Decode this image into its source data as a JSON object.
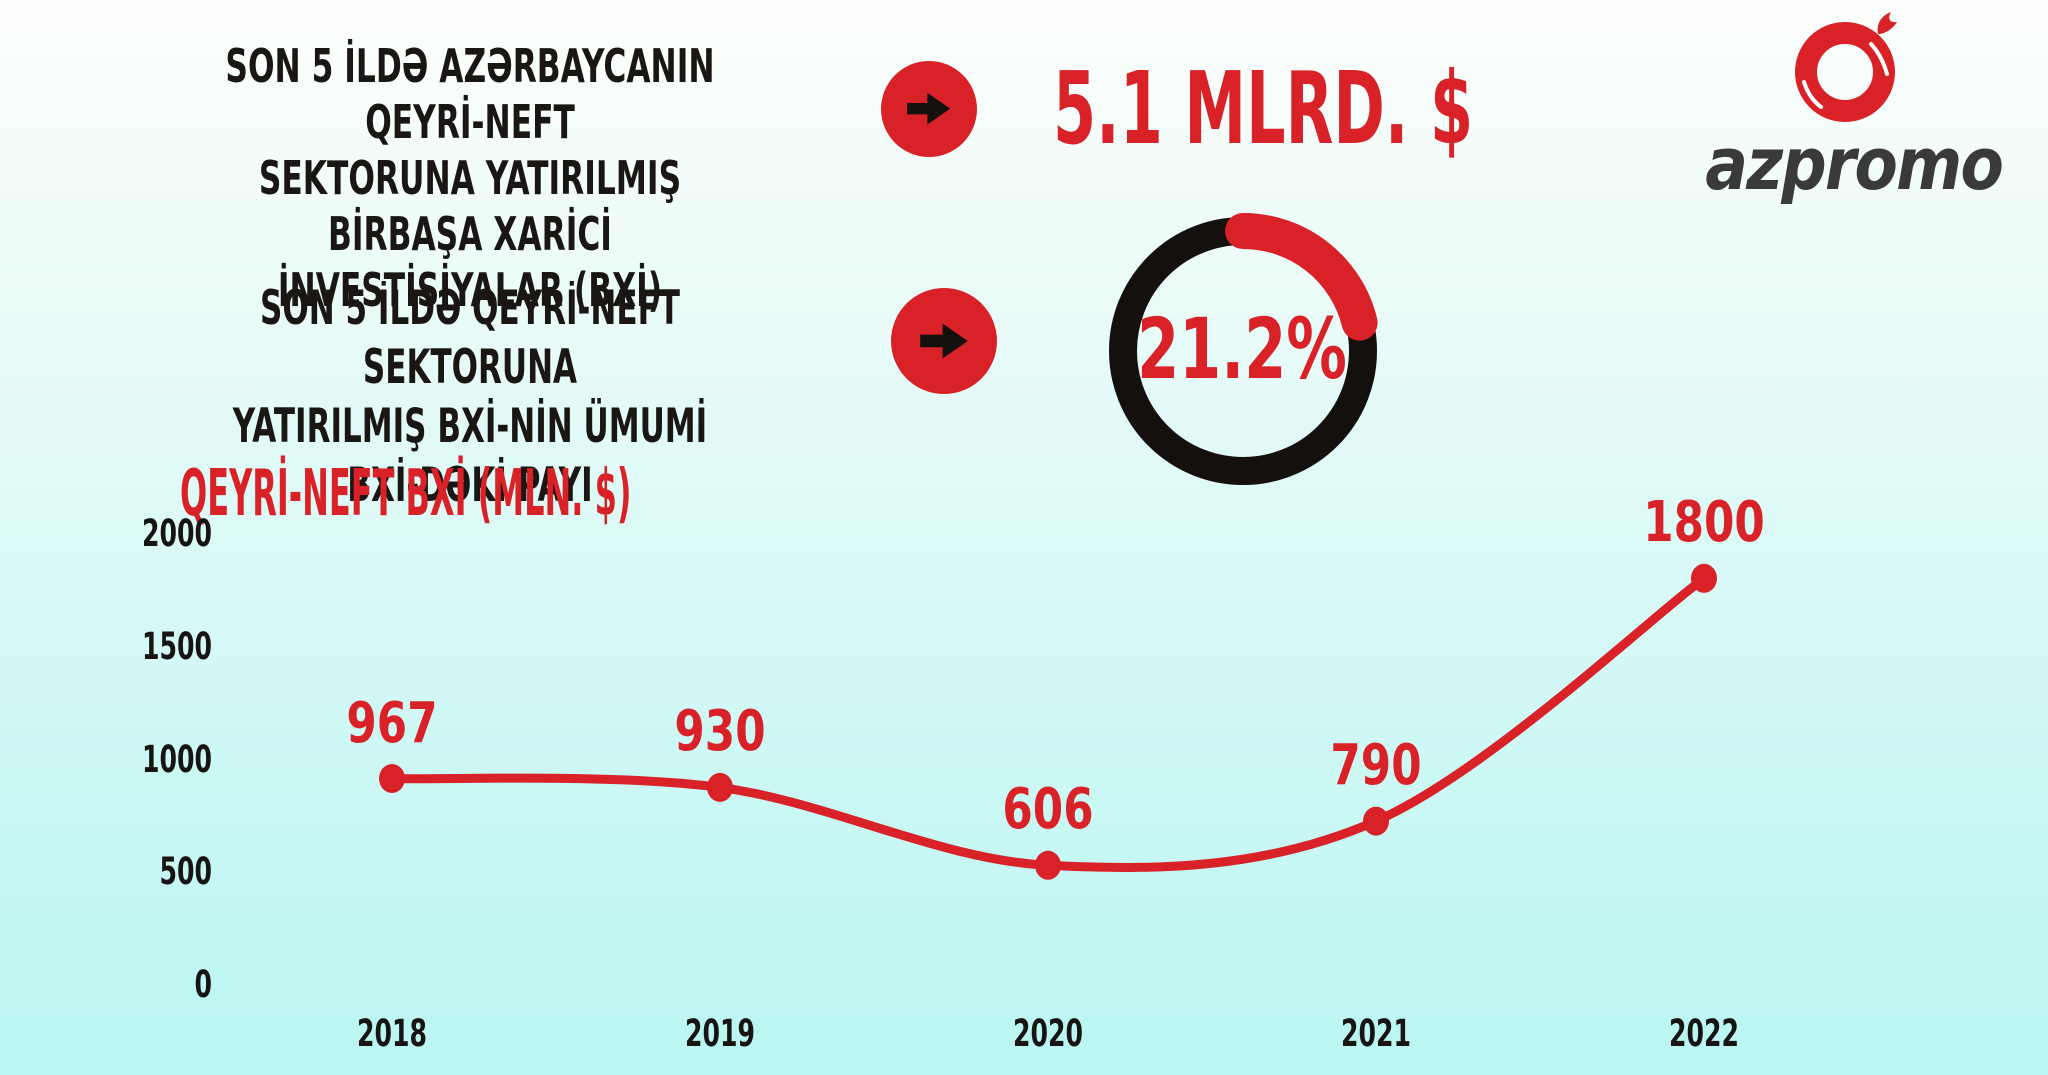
{
  "page": {
    "background_top": "#fdfefc",
    "background_bottom": "#b9f6f2"
  },
  "colors": {
    "accent_red": "#d92128",
    "ink_black": "#171413",
    "logo_gray": "#3a3a3a"
  },
  "logo": {
    "brand": "azpromo",
    "icon": "pomegranate-icon"
  },
  "header": {
    "stat1": {
      "label_lines": [
        "SON 5 İLDƏ AZƏRBAYCANIN QEYRİ-NEFT",
        "SEKTORUNA YATIRILMIŞ BİRBAŞA XARİCİ",
        "İNVESTİSİYALAR (BXİ)"
      ],
      "value": "5.1 MLRD. $"
    },
    "stat2": {
      "label_lines": [
        "SON 5 İLDƏ QEYRİ-NEFT SEKTORUNA",
        "YATIRILMIŞ BXİ-NİN ÜMUMİ BXİ-DƏKİ PAYI"
      ],
      "value": "21.2%",
      "donut_percent": 21.2
    }
  },
  "chart_data": {
    "type": "line",
    "title": "QEYRİ-NEFT BXİ (MLN. $)",
    "categories": [
      "2018",
      "2019",
      "2020",
      "2021",
      "2022"
    ],
    "values": [
      967,
      930,
      606,
      790,
      1800
    ],
    "yticks": [
      0,
      500,
      1000,
      1500,
      2000
    ],
    "ylim": [
      0,
      2000
    ],
    "xlabel": "",
    "ylabel": "MLN. $",
    "grid": false,
    "legend": false,
    "line_color": "#d92128",
    "marker": "dot",
    "data_labels_shown": true
  }
}
